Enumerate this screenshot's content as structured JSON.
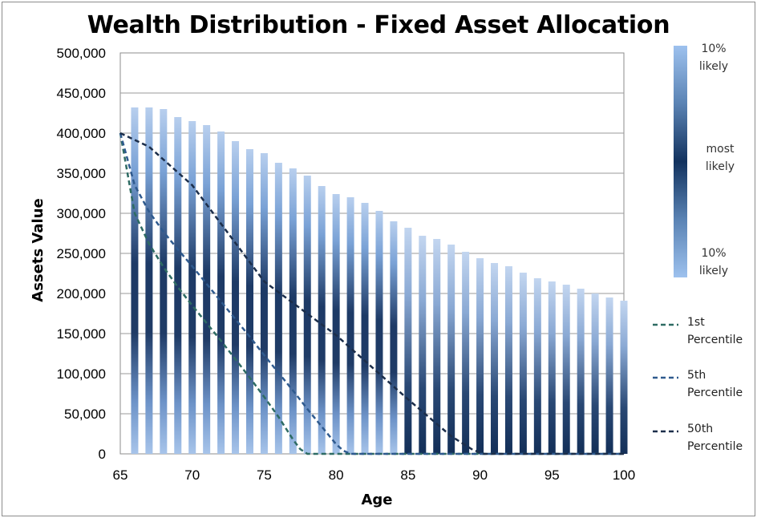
{
  "chart_data": {
    "type": "bar",
    "title": "Wealth Distribution - Fixed Asset Allocation",
    "xlabel": "Age",
    "ylabel": "Assets Value",
    "xlim": [
      65,
      100
    ],
    "ylim": [
      0,
      500000
    ],
    "x_ticks": [
      "65",
      "70",
      "75",
      "80",
      "85",
      "90",
      "95",
      "100"
    ],
    "y_ticks": [
      "0",
      "50,000",
      "100,000",
      "150,000",
      "200,000",
      "250,000",
      "300,000",
      "350,000",
      "400,000",
      "450,000",
      "500,000"
    ],
    "grid": true,
    "categories": [
      66,
      67,
      68,
      69,
      70,
      71,
      72,
      73,
      74,
      75,
      76,
      77,
      78,
      79,
      80,
      81,
      82,
      83,
      84,
      85,
      86,
      87,
      88,
      89,
      90,
      91,
      92,
      93,
      94,
      95,
      96,
      97,
      98,
      99,
      100
    ],
    "bar_top": [
      432000,
      432000,
      430000,
      420000,
      415000,
      410000,
      402000,
      390000,
      380000,
      375000,
      363000,
      356000,
      347000,
      334000,
      324000,
      320000,
      313000,
      303000,
      290000,
      282000,
      272000,
      268000,
      261000,
      252000,
      244000,
      238000,
      234000,
      226000,
      219000,
      215000,
      211000,
      206000,
      200000,
      195000,
      191000
    ],
    "gradient_legend": {
      "top": "10%\nlikely",
      "middle": "most\nlikely",
      "bottom": "10%\nlikely",
      "top_label": [
        "10%",
        "likely"
      ],
      "middle_label": [
        "most",
        "likely"
      ],
      "bottom_label": [
        "10%",
        "likely"
      ]
    },
    "series": [
      {
        "name": "1st Percentile",
        "color": "#2e6b63",
        "x": [
          65,
          66,
          67,
          68,
          69,
          70,
          71,
          72,
          73,
          74,
          75,
          76,
          77,
          77.5,
          78,
          79,
          80,
          85,
          90,
          95,
          100
        ],
        "y": [
          400000,
          300000,
          262000,
          233000,
          208000,
          185000,
          163000,
          141000,
          118000,
          95000,
          71000,
          46000,
          18000,
          6000,
          0,
          0,
          0,
          0,
          0,
          0,
          0
        ]
      },
      {
        "name": "5th Percentile",
        "color": "#2f5a8e",
        "x": [
          65,
          66,
          67,
          68,
          69,
          70,
          71,
          72,
          73,
          74,
          75,
          76,
          77,
          78,
          79,
          80,
          80.5,
          81,
          82,
          85,
          90,
          95,
          100
        ],
        "y": [
          400000,
          335000,
          302000,
          277000,
          255000,
          234000,
          212000,
          190000,
          168000,
          146000,
          123000,
          101000,
          79000,
          56000,
          34000,
          12000,
          4000,
          0,
          0,
          0,
          0,
          0,
          0
        ]
      },
      {
        "name": "50th Percentile",
        "color": "#1c2e4a",
        "x": [
          65,
          67,
          70,
          75,
          80,
          85,
          88,
          89.5,
          90.3,
          91,
          95,
          100
        ],
        "y": [
          400000,
          383000,
          335000,
          215000,
          148000,
          68000,
          22000,
          5000,
          0,
          0,
          0,
          0
        ]
      }
    ]
  },
  "legend": {
    "items": [
      {
        "line1": "1st",
        "line2": "Percentile"
      },
      {
        "line1": "5th",
        "line2": "Percentile"
      },
      {
        "line1": "50th",
        "line2": "Percentile"
      }
    ]
  }
}
